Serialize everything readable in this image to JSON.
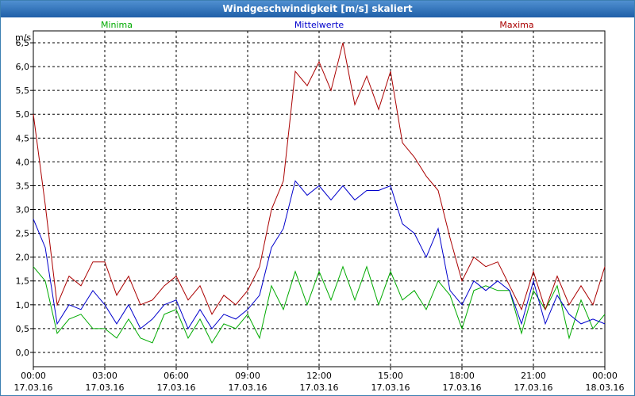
{
  "window": {
    "title": "Windgeschwindigkeit [m/s] skaliert"
  },
  "chart_data": {
    "type": "line",
    "title": "Windgeschwindigkeit [m/s] skaliert",
    "ylabel": "m/s",
    "xlabel": "",
    "ylim": [
      -0.3,
      6.75
    ],
    "xlim": [
      0,
      24
    ],
    "grid": true,
    "y_ticks": [
      "0,0",
      "0,5",
      "1,0",
      "1,5",
      "2,0",
      "2,5",
      "3,0",
      "3,5",
      "4,0",
      "4,5",
      "5,0",
      "5,5",
      "6,0",
      "6,5"
    ],
    "y_tick_values": [
      0,
      0.5,
      1,
      1.5,
      2,
      2.5,
      3,
      3.5,
      4,
      4.5,
      5,
      5.5,
      6,
      6.5
    ],
    "x_ticks": [
      {
        "time": "00:00",
        "date": "17.03.16"
      },
      {
        "time": "03:00",
        "date": "17.03.16"
      },
      {
        "time": "06:00",
        "date": "17.03.16"
      },
      {
        "time": "09:00",
        "date": "17.03.16"
      },
      {
        "time": "12:00",
        "date": "17.03.16"
      },
      {
        "time": "15:00",
        "date": "17.03.16"
      },
      {
        "time": "18:00",
        "date": "17.03.16"
      },
      {
        "time": "21:00",
        "date": "17.03.16"
      },
      {
        "time": "00:00",
        "date": "18.03.16"
      }
    ],
    "x_tick_hours": [
      0,
      3,
      6,
      9,
      12,
      15,
      18,
      21,
      24
    ],
    "x_hours": [
      0,
      0.5,
      1,
      1.5,
      2,
      2.5,
      3,
      3.5,
      4,
      4.5,
      5,
      5.5,
      6,
      6.5,
      7,
      7.5,
      8,
      8.5,
      9,
      9.5,
      10,
      10.5,
      11,
      11.5,
      12,
      12.5,
      13,
      13.5,
      14,
      14.5,
      15,
      15.5,
      16,
      16.5,
      17,
      17.5,
      18,
      18.5,
      19,
      19.5,
      20,
      20.5,
      21,
      21.5,
      22,
      22.5,
      23,
      23.5,
      24
    ],
    "series": [
      {
        "name": "Minima",
        "color": "#00aa00",
        "values": [
          1.8,
          1.5,
          0.4,
          0.7,
          0.8,
          0.5,
          0.5,
          0.3,
          0.7,
          0.3,
          0.2,
          0.8,
          0.9,
          0.3,
          0.7,
          0.2,
          0.6,
          0.5,
          0.8,
          0.3,
          1.4,
          0.9,
          1.7,
          1.0,
          1.7,
          1.1,
          1.8,
          1.1,
          1.8,
          1.0,
          1.7,
          1.1,
          1.3,
          0.9,
          1.5,
          1.2,
          0.5,
          1.3,
          1.4,
          1.3,
          1.3,
          0.4,
          1.3,
          0.9,
          1.4,
          0.3,
          1.1,
          0.5,
          0.8
        ]
      },
      {
        "name": "Mittelwerte",
        "color": "#0000cc",
        "values": [
          2.8,
          2.2,
          0.6,
          1.0,
          0.9,
          1.3,
          1.0,
          0.6,
          1.0,
          0.5,
          0.7,
          1.0,
          1.1,
          0.5,
          0.9,
          0.5,
          0.8,
          0.7,
          0.9,
          1.2,
          2.2,
          2.6,
          3.6,
          3.3,
          3.5,
          3.2,
          3.5,
          3.2,
          3.4,
          3.4,
          3.5,
          2.7,
          2.5,
          2.0,
          2.6,
          1.3,
          1.0,
          1.5,
          1.3,
          1.5,
          1.3,
          0.6,
          1.5,
          0.6,
          1.2,
          0.8,
          0.6,
          0.7,
          0.6
        ]
      },
      {
        "name": "Maxima",
        "color": "#aa0000",
        "values": [
          5.0,
          3.1,
          1.0,
          1.6,
          1.4,
          1.9,
          1.9,
          1.2,
          1.6,
          1.0,
          1.1,
          1.4,
          1.6,
          1.1,
          1.4,
          0.8,
          1.2,
          1.0,
          1.3,
          1.8,
          3.0,
          3.6,
          5.9,
          5.6,
          6.1,
          5.5,
          6.5,
          5.2,
          5.8,
          5.1,
          5.9,
          4.4,
          4.1,
          3.7,
          3.4,
          2.4,
          1.5,
          2.0,
          1.8,
          1.9,
          1.4,
          0.9,
          1.7,
          0.9,
          1.6,
          1.0,
          1.4,
          1.0,
          1.8
        ]
      }
    ]
  }
}
